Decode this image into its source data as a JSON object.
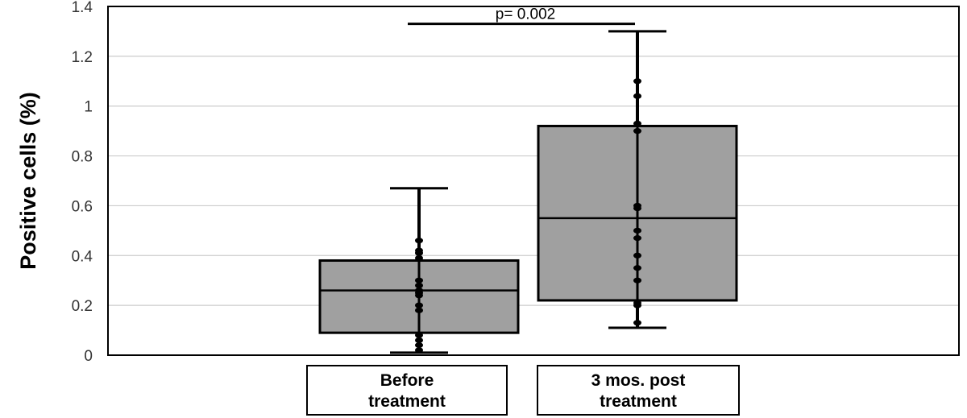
{
  "chart_data": {
    "type": "box",
    "title": "",
    "xlabel": "",
    "ylabel": "Positive cells (%)",
    "ylim": [
      0,
      1.4
    ],
    "yticks": [
      "0",
      "0.2",
      "0.4",
      "0.6",
      "0.8",
      "1",
      "1.2",
      "1.4"
    ],
    "grid": true,
    "categories": [
      {
        "line1": "Before",
        "line2": "treatment"
      },
      {
        "line1": "3 mos. post",
        "line2": "treatment"
      }
    ],
    "boxes": [
      {
        "whisker_low": 0.01,
        "q1": 0.09,
        "median": 0.26,
        "q3": 0.38,
        "whisker_high": 0.67,
        "points": [
          0.02,
          0.04,
          0.06,
          0.08,
          0.18,
          0.2,
          0.24,
          0.25,
          0.26,
          0.28,
          0.3,
          0.39,
          0.41,
          0.42,
          0.46
        ]
      },
      {
        "whisker_low": 0.11,
        "q1": 0.22,
        "median": 0.55,
        "q3": 0.92,
        "whisker_high": 1.3,
        "points": [
          0.13,
          0.2,
          0.21,
          0.3,
          0.35,
          0.4,
          0.47,
          0.5,
          0.59,
          0.6,
          0.9,
          0.93,
          1.04,
          1.1
        ]
      }
    ],
    "annotation": {
      "text": "p= 0.002",
      "y": 1.33
    },
    "colors": {
      "box_fill": "#a0a0a0",
      "stroke": "#000000",
      "grid": "#cccccc"
    }
  }
}
